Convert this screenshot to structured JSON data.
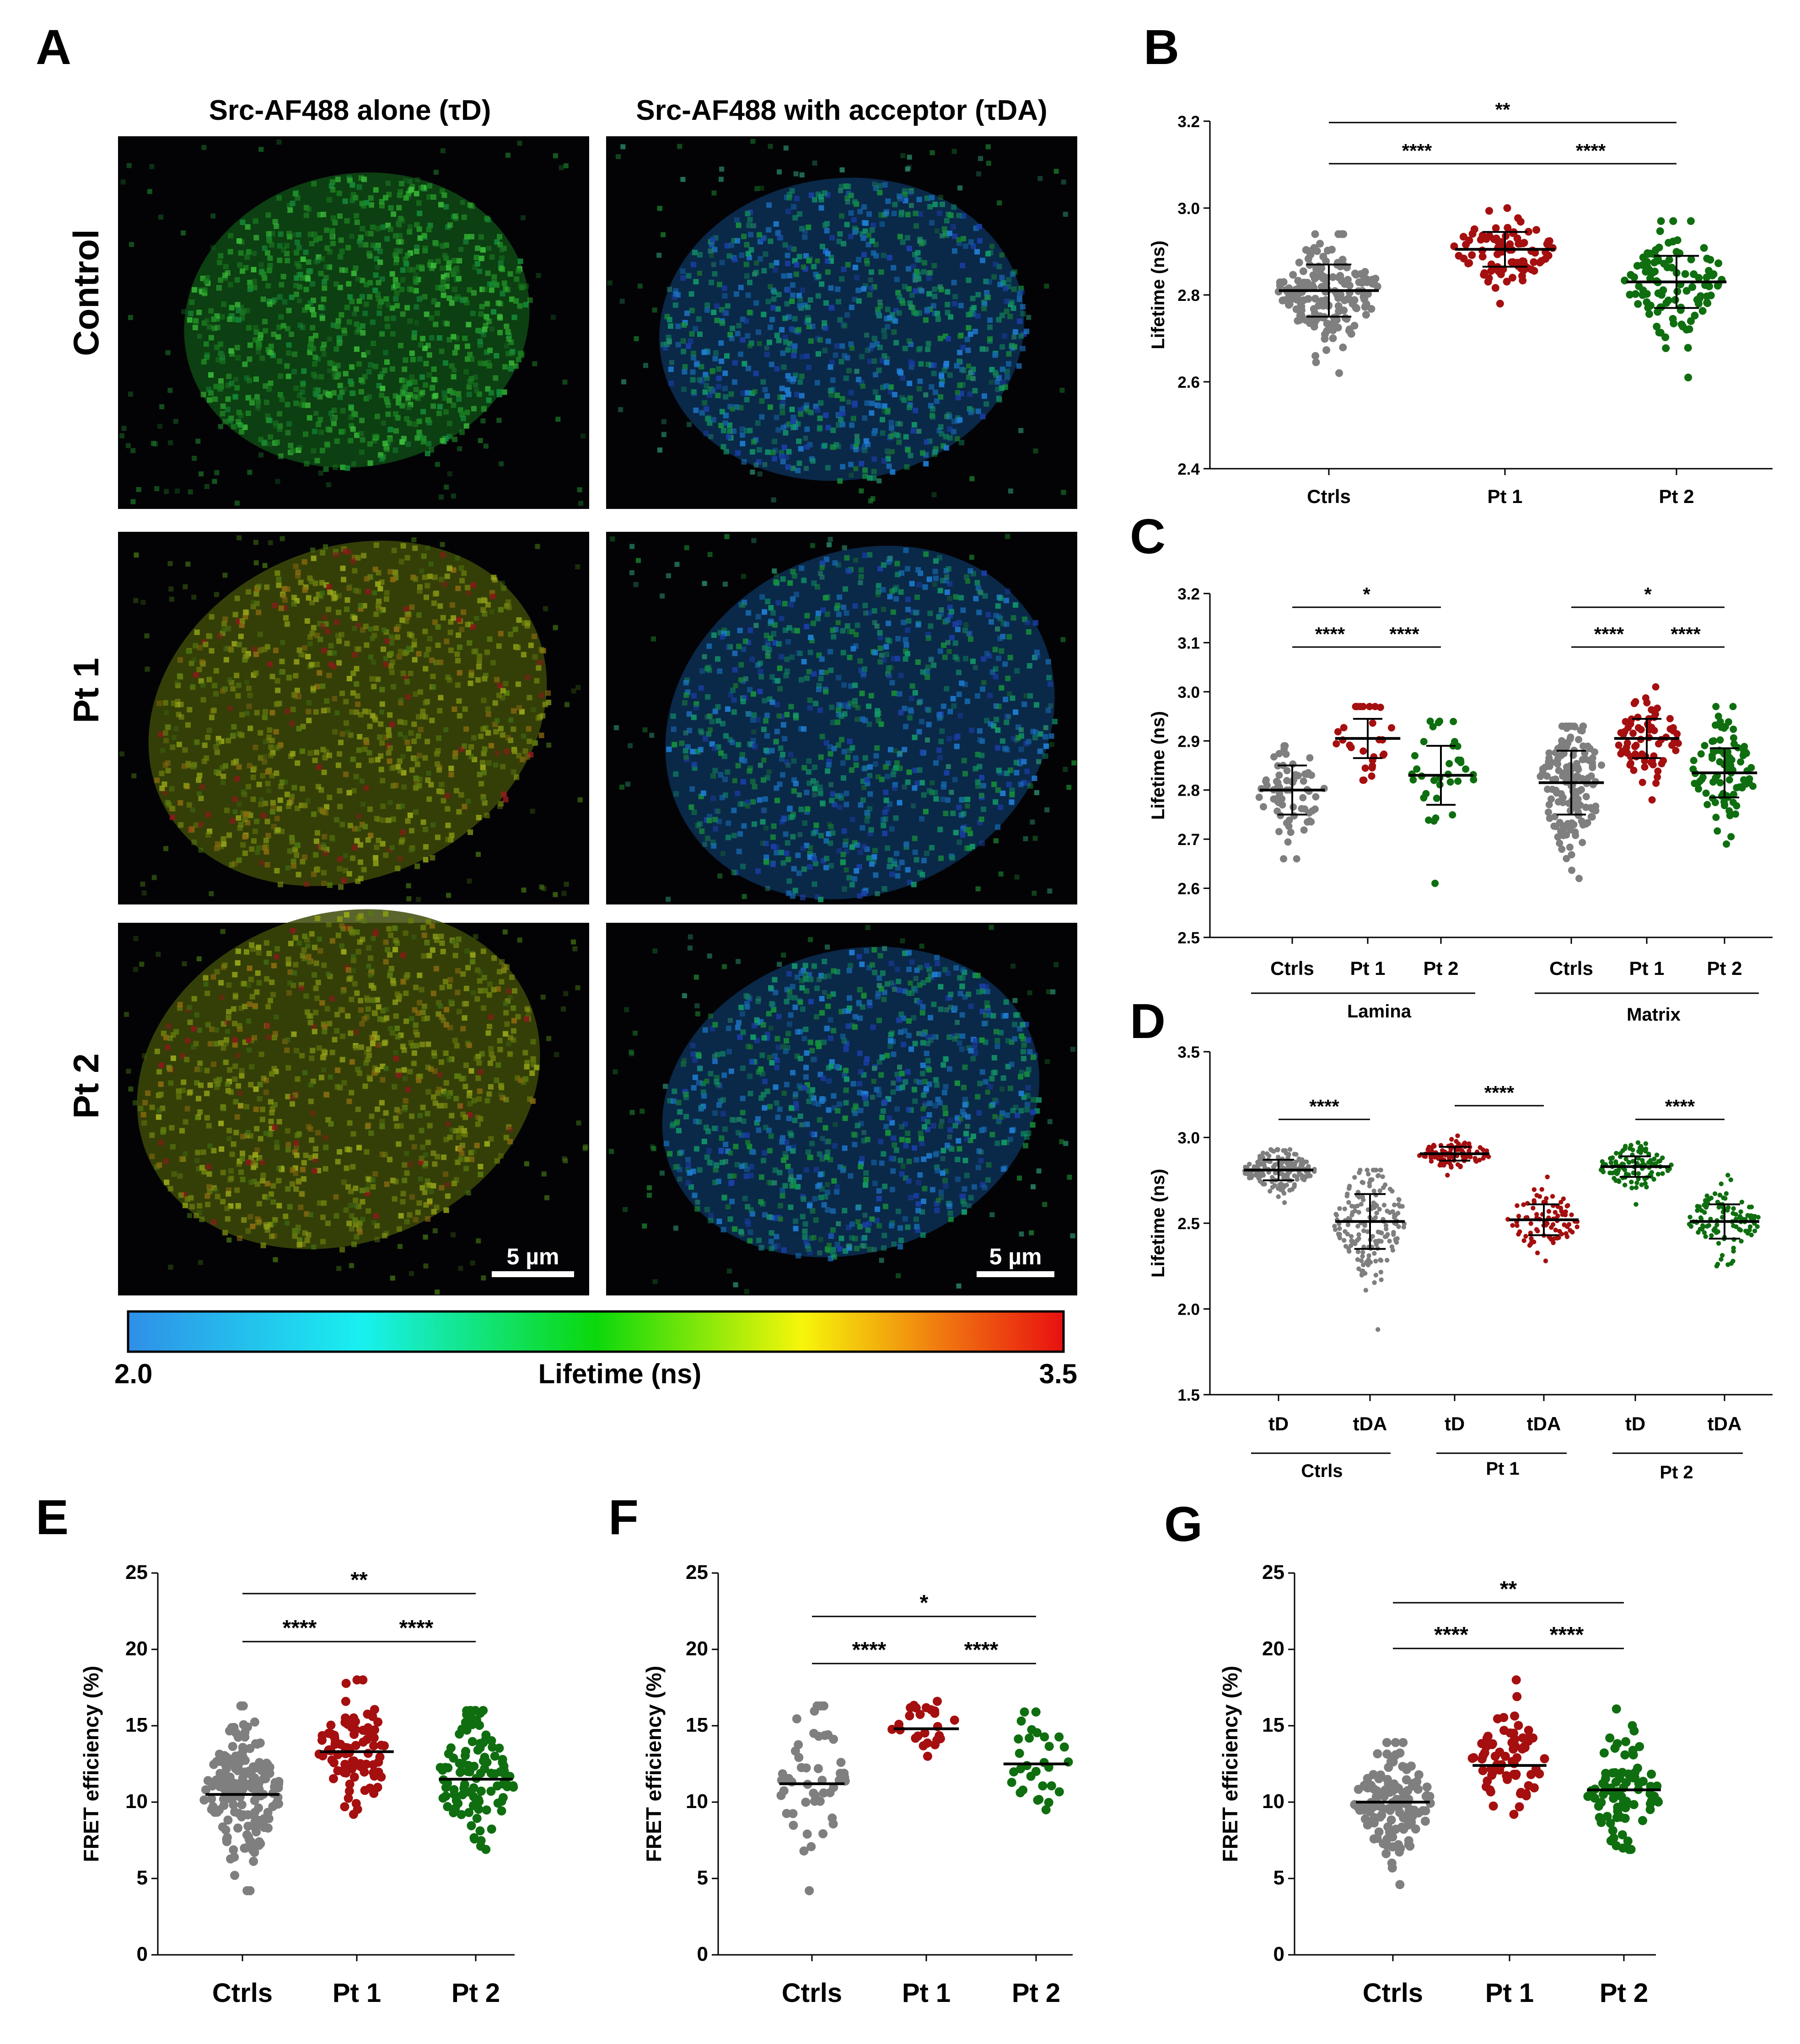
{
  "colors": {
    "ctrls": "#7f7f7f",
    "pt1": "#a50f0f",
    "pt2": "#0f6e0f",
    "green_bright": "#1f9e1f"
  },
  "panel_labels": [
    "A",
    "B",
    "C",
    "D",
    "E",
    "F",
    "G"
  ],
  "panel_a": {
    "column_titles": [
      "Src-AF488 alone (τD)",
      "Src-AF488 with acceptor (τDA)"
    ],
    "row_labels": [
      "Control",
      "Pt 1",
      "Pt 2"
    ],
    "scale_bar": "5 µm",
    "colorbar": {
      "min_label": "2.0",
      "max_label": "3.5",
      "title": "Lifetime (ns)"
    }
  },
  "chart_data": [
    {
      "panel": "B",
      "type": "scatter",
      "ylabel": "Lifetime (ns)",
      "ylim": [
        2.4,
        3.2
      ],
      "yticks": [
        "2.4",
        "2.6",
        "2.8",
        "3.0",
        "3.2"
      ],
      "categories": [
        "Ctrls",
        "Pt 1",
        "Pt 2"
      ],
      "series": [
        {
          "mean": 2.81,
          "sd": 0.06,
          "min": 2.62,
          "max": 2.94,
          "n": 180
        },
        {
          "mean": 2.905,
          "sd": 0.04,
          "min": 2.78,
          "max": 3.0,
          "n": 90
        },
        {
          "mean": 2.83,
          "sd": 0.06,
          "min": 2.61,
          "max": 2.97,
          "n": 110
        }
      ],
      "significance": [
        {
          "from": "Ctrls",
          "to": "Pt 2",
          "label": "**"
        },
        {
          "from": "Ctrls",
          "to": "Pt 1",
          "label": "****"
        },
        {
          "from": "Pt 1",
          "to": "Pt 2",
          "label": "****"
        }
      ]
    },
    {
      "panel": "C",
      "type": "scatter",
      "ylabel": "Lifetime (ns)",
      "ylim": [
        2.5,
        3.2
      ],
      "yticks": [
        "2.5",
        "2.6",
        "2.7",
        "2.8",
        "2.9",
        "3.0",
        "3.1",
        "3.2"
      ],
      "categories": [
        "Ctrls",
        "Pt 1",
        "Pt 2",
        "Ctrls",
        "Pt 1",
        "Pt 2"
      ],
      "groups": [
        "Lamina",
        "Matrix"
      ],
      "series": [
        {
          "mean": 2.8,
          "sd": 0.05,
          "min": 2.66,
          "max": 2.89,
          "n": 70
        },
        {
          "mean": 2.905,
          "sd": 0.04,
          "min": 2.82,
          "max": 2.97,
          "n": 28
        },
        {
          "mean": 2.83,
          "sd": 0.06,
          "min": 2.61,
          "max": 2.94,
          "n": 35
        },
        {
          "mean": 2.815,
          "sd": 0.065,
          "min": 2.62,
          "max": 2.93,
          "n": 150
        },
        {
          "mean": 2.905,
          "sd": 0.04,
          "min": 2.78,
          "max": 3.01,
          "n": 75
        },
        {
          "mean": 2.835,
          "sd": 0.05,
          "min": 2.69,
          "max": 2.97,
          "n": 90
        }
      ],
      "significance": [
        {
          "label": "*"
        },
        {
          "label": "****"
        },
        {
          "label": "****"
        },
        {
          "label": "*"
        },
        {
          "label": "****"
        },
        {
          "label": "****"
        }
      ]
    },
    {
      "panel": "D",
      "type": "scatter",
      "ylabel": "Lifetime (ns)",
      "ylim": [
        1.5,
        3.5
      ],
      "yticks": [
        "1.5",
        "2.0",
        "2.5",
        "3.0",
        "3.5"
      ],
      "categories": [
        "tD",
        "tDA",
        "tD",
        "tDA",
        "tD",
        "tDA"
      ],
      "groups": [
        "Ctrls",
        "Pt 1",
        "Pt 2"
      ],
      "series": [
        {
          "mean": 2.81,
          "sd": 0.06,
          "min": 2.62,
          "max": 2.93,
          "n": 180
        },
        {
          "mean": 2.51,
          "sd": 0.16,
          "min": 1.88,
          "max": 2.81,
          "n": 180
        },
        {
          "mean": 2.905,
          "sd": 0.04,
          "min": 2.78,
          "max": 3.01,
          "n": 90
        },
        {
          "mean": 2.52,
          "sd": 0.09,
          "min": 2.28,
          "max": 2.77,
          "n": 90
        },
        {
          "mean": 2.83,
          "sd": 0.06,
          "min": 2.61,
          "max": 2.97,
          "n": 110
        },
        {
          "mean": 2.51,
          "sd": 0.1,
          "min": 2.25,
          "max": 2.78,
          "n": 110
        }
      ],
      "significance": [
        {
          "label": "****"
        },
        {
          "label": "****"
        },
        {
          "label": "****"
        }
      ]
    },
    {
      "panel": "E",
      "type": "scatter",
      "ylabel": "FRET efficiency (%)",
      "ylim": [
        0,
        25
      ],
      "yticks": [
        "0",
        "5",
        "10",
        "15",
        "20",
        "25"
      ],
      "categories": [
        "Ctrls",
        "Pt 1",
        "Pt 2"
      ],
      "series": [
        {
          "mean": 10.5,
          "sd": 2.2,
          "min": 4.2,
          "max": 16.3,
          "n": 180
        },
        {
          "mean": 13.3,
          "sd": 1.9,
          "min": 9.2,
          "max": 18.0,
          "n": 90
        },
        {
          "mean": 11.5,
          "sd": 2.0,
          "min": 6.9,
          "max": 16.0,
          "n": 110
        }
      ],
      "significance": [
        {
          "from": "Ctrls",
          "to": "Pt 2",
          "label": "**"
        },
        {
          "from": "Ctrls",
          "to": "Pt 1",
          "label": "****"
        },
        {
          "from": "Pt 1",
          "to": "Pt 2",
          "label": "****"
        }
      ]
    },
    {
      "panel": "F",
      "type": "scatter",
      "ylabel": "FRET efficiency (%)",
      "ylim": [
        0,
        25
      ],
      "yticks": [
        "0",
        "5",
        "10",
        "15",
        "20",
        "25"
      ],
      "categories": [
        "Ctrls",
        "Pt 1",
        "Pt 2"
      ],
      "series": [
        {
          "mean": 11.2,
          "sd": 2.6,
          "min": 4.2,
          "max": 16.3,
          "n": 50
        },
        {
          "mean": 14.8,
          "sd": 0.9,
          "min": 13.0,
          "max": 16.6,
          "n": 25
        },
        {
          "mean": 12.5,
          "sd": 1.8,
          "min": 9.5,
          "max": 15.9,
          "n": 30
        }
      ],
      "significance": [
        {
          "from": "Ctrls",
          "to": "Pt 2",
          "label": "*"
        },
        {
          "from": "Ctrls",
          "to": "Pt 1",
          "label": "****"
        },
        {
          "from": "Pt 1",
          "to": "Pt 2",
          "label": "****"
        }
      ]
    },
    {
      "panel": "G",
      "type": "scatter",
      "ylabel": "FRET efficiency (%)",
      "ylim": [
        0,
        25
      ],
      "yticks": [
        "0",
        "5",
        "10",
        "15",
        "20",
        "25"
      ],
      "categories": [
        "Ctrls",
        "Pt 1",
        "Pt 2"
      ],
      "series": [
        {
          "mean": 10.0,
          "sd": 1.8,
          "min": 4.6,
          "max": 13.9,
          "n": 130
        },
        {
          "mean": 12.4,
          "sd": 1.6,
          "min": 9.2,
          "max": 18.0,
          "n": 70
        },
        {
          "mean": 10.8,
          "sd": 1.8,
          "min": 6.9,
          "max": 16.1,
          "n": 80
        }
      ],
      "significance": [
        {
          "from": "Ctrls",
          "to": "Pt 2",
          "label": "**"
        },
        {
          "from": "Ctrls",
          "to": "Pt 1",
          "label": "****"
        },
        {
          "from": "Pt 1",
          "to": "Pt 2",
          "label": "****"
        }
      ]
    }
  ]
}
